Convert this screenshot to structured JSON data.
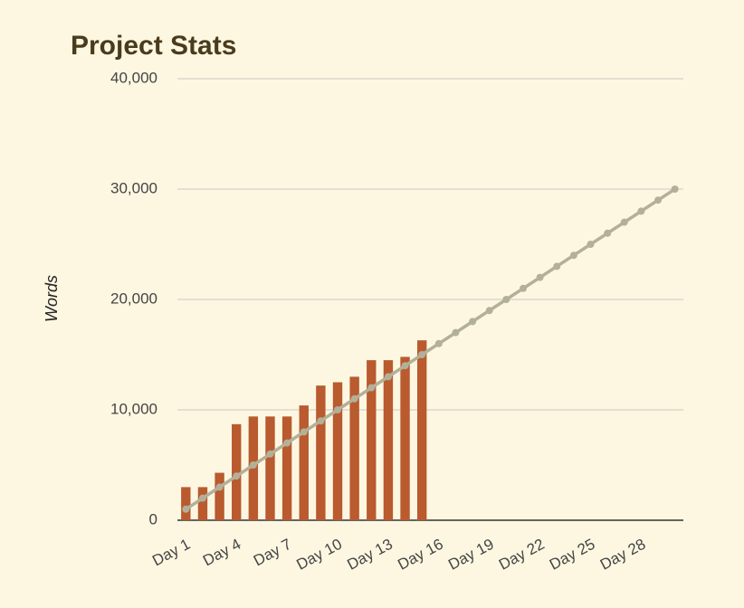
{
  "chart_data": {
    "type": "bar",
    "title": "Project Stats",
    "y_label": "Words",
    "categories": [
      "Day 1",
      null,
      null,
      "Day 4",
      null,
      null,
      "Day 7",
      null,
      null,
      "Day 10",
      null,
      null,
      "Day 13",
      null,
      null,
      "Day 16",
      null,
      null,
      "Day 19",
      null,
      null,
      "Day 22",
      null,
      null,
      "Day 25",
      null,
      null,
      "Day 28",
      null,
      null
    ],
    "series": [
      {
        "type": "bar",
        "color": "#b95a2f",
        "values": [
          3000,
          3000,
          4300,
          8700,
          9400,
          9400,
          9400,
          10400,
          12200,
          12500,
          13000,
          14500,
          14500,
          14800,
          16300,
          null,
          null,
          null,
          null,
          null,
          null,
          null,
          null,
          null,
          null,
          null,
          null,
          null,
          null,
          null
        ]
      },
      {
        "type": "line",
        "color": "#b3b09a",
        "values": [
          1000,
          2000,
          3000,
          4000,
          5000,
          6000,
          7000,
          8000,
          9000,
          10000,
          11000,
          12000,
          13000,
          14000,
          15000,
          16000,
          17000,
          18000,
          19000,
          20000,
          21000,
          22000,
          23000,
          24000,
          25000,
          26000,
          27000,
          28000,
          29000,
          30000
        ]
      }
    ],
    "ylim": [
      0,
      40000
    ],
    "yticks": [
      0,
      {
        "value": 10000,
        "label": "10,000"
      },
      {
        "value": 20000,
        "label": "20,000"
      },
      {
        "value": 30000,
        "label": "30,000"
      },
      {
        "value": 40000,
        "label": "40,000"
      }
    ],
    "grid": true
  }
}
